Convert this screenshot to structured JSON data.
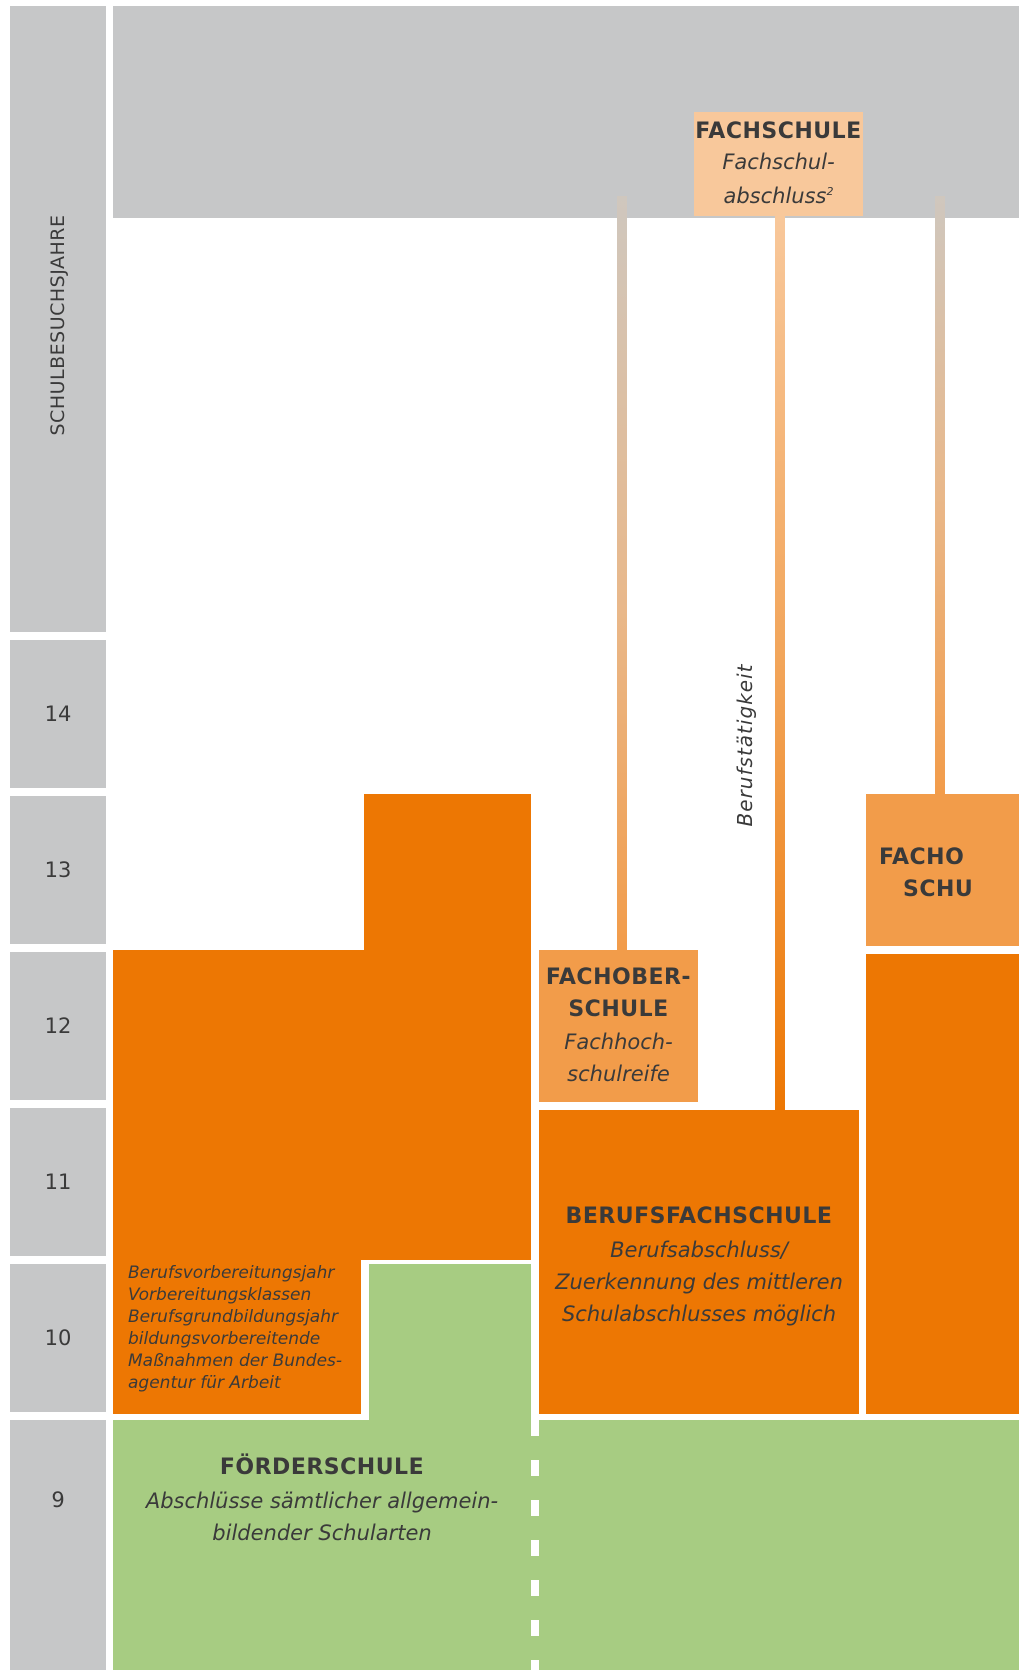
{
  "axis_label": "SCHULBESUCHSJAHRE",
  "years": [
    "14",
    "13",
    "12",
    "11",
    "10",
    "9"
  ],
  "fachschule": {
    "title": "FACHSCHULE",
    "sub1": "Fachschul-",
    "sub2": "abschluss",
    "sup": "2"
  },
  "fachoberschule": {
    "title1": "FACHOBER-",
    "title2": "SCHULE",
    "sub1": "Fachhoch-",
    "sub2": "schulreife"
  },
  "fachoberschule_right": {
    "title1": "FACHO",
    "title2": "SCHU"
  },
  "berufstaetigkeit": "Berufstätigkeit",
  "berufsfachschule": {
    "title": "BERUFSFACHSCHULE",
    "sub1": "Berufsabschluss/",
    "sub2": "Zuerkennung des mittleren",
    "sub3": "Schulabschlusses möglich"
  },
  "vorbereitung": [
    "Berufsvorbereitungsjahr",
    "Vorbereitungsklassen",
    "Berufsgrundbildungsjahr",
    "bildungsvorbereitende",
    "Maßnahmen der Bundes-",
    "agentur für Arbeit"
  ],
  "foerderschule": {
    "title": "FÖRDERSCHULE",
    "sub1": "Abschlüsse sämtlicher allgemein-",
    "sub2": "bildender Schularten"
  },
  "colors": {
    "grey": "#c6c7c8",
    "orange": "#ed7703",
    "light_orange": "#f29c4a",
    "peach": "#f8c89b",
    "green": "#a7cc82"
  }
}
